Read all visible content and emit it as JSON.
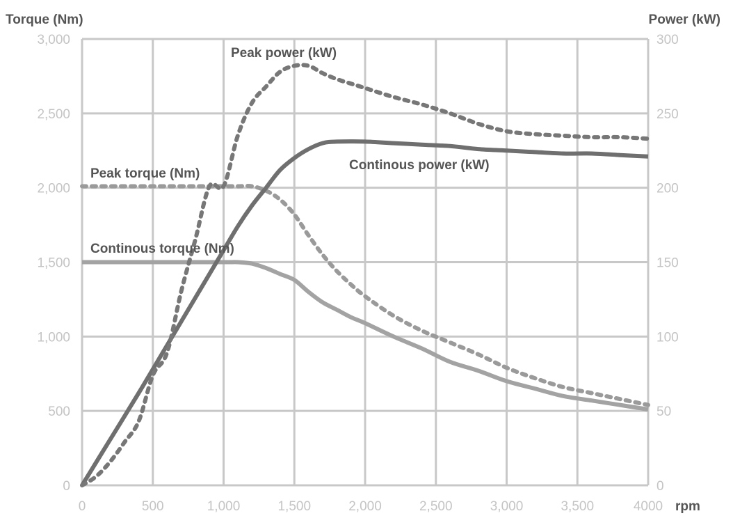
{
  "chart_data": {
    "type": "line",
    "y_left_label": "Torque (Nm)",
    "y_right_label": "Power (kW)",
    "xlabel": "rpm",
    "xlim": [
      0,
      4000
    ],
    "ylim_left": [
      0,
      3000
    ],
    "ylim_right": [
      0,
      300
    ],
    "grid": true,
    "x_ticks": [
      0,
      500,
      1000,
      1500,
      2000,
      2500,
      3000,
      3500,
      4000
    ],
    "x_tick_labels": [
      "0",
      "500",
      "1,000",
      "1,500",
      "2,000",
      "2,500",
      "3,000",
      "3,500",
      "4000"
    ],
    "y_left_tick_labels": [
      "0",
      "500",
      "1,000",
      "1,500",
      "2,000",
      "2,500",
      "3,000"
    ],
    "y_right_tick_labels": [
      "0",
      "50",
      "100",
      "150",
      "200",
      "250",
      "300"
    ],
    "series": [
      {
        "name": "Peak power (kW)",
        "axis": "right",
        "style": "dotted",
        "color": "#777777",
        "x": [
          0,
          100,
          200,
          300,
          400,
          500,
          600,
          700,
          800,
          900,
          1000,
          1100,
          1200,
          1300,
          1400,
          1500,
          1600,
          1700,
          1800,
          1900,
          2000,
          2200,
          2400,
          2600,
          2800,
          3000,
          3200,
          3400,
          3600,
          3800,
          4000
        ],
        "values": [
          0,
          6,
          16,
          29,
          43,
          74,
          89,
          130,
          165,
          201,
          201,
          235,
          257,
          268,
          278,
          282,
          282,
          277,
          273,
          270,
          267,
          261,
          256,
          250,
          243,
          238,
          236,
          235,
          234,
          234,
          233
        ]
      },
      {
        "name": "Continous power (kW)",
        "axis": "right",
        "style": "solid",
        "color": "#6f6f6f",
        "x": [
          0,
          200,
          400,
          600,
          800,
          1000,
          1100,
          1200,
          1300,
          1400,
          1500,
          1600,
          1700,
          1800,
          2000,
          2200,
          2400,
          2600,
          2800,
          3000,
          3200,
          3400,
          3600,
          3800,
          4000
        ],
        "values": [
          0,
          31,
          62,
          94,
          126,
          158,
          174,
          188,
          200,
          212,
          220,
          226,
          230,
          231,
          231,
          230,
          229,
          228,
          226,
          225,
          224,
          223,
          223,
          222,
          221
        ]
      },
      {
        "name": "Peak torque (Nm)",
        "axis": "left",
        "style": "dotted",
        "color": "#9a9a9a",
        "x": [
          0,
          500,
          1000,
          1100,
          1200,
          1300,
          1400,
          1500,
          1600,
          1700,
          1800,
          1900,
          2000,
          2200,
          2400,
          2600,
          2800,
          3000,
          3200,
          3400,
          3600,
          3800,
          4000
        ],
        "values": [
          2010,
          2010,
          2010,
          2010,
          2010,
          1980,
          1920,
          1820,
          1680,
          1550,
          1440,
          1350,
          1270,
          1140,
          1040,
          960,
          880,
          790,
          720,
          660,
          620,
          580,
          540
        ]
      },
      {
        "name": "Continous torque (Nm)",
        "axis": "left",
        "style": "solid",
        "color": "#a3a3a3",
        "x": [
          0,
          500,
          1000,
          1100,
          1200,
          1300,
          1400,
          1500,
          1600,
          1700,
          1800,
          1900,
          2000,
          2200,
          2400,
          2600,
          2800,
          3000,
          3200,
          3400,
          3600,
          3800,
          4000
        ],
        "values": [
          1500,
          1500,
          1500,
          1500,
          1490,
          1460,
          1420,
          1380,
          1300,
          1230,
          1180,
          1130,
          1090,
          1000,
          920,
          830,
          770,
          700,
          650,
          600,
          570,
          540,
          510
        ]
      }
    ]
  }
}
